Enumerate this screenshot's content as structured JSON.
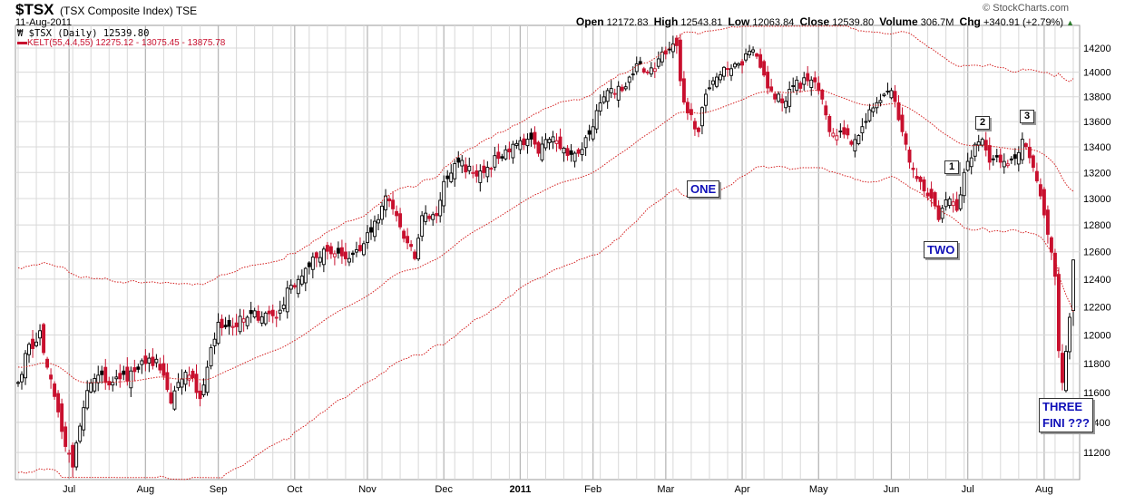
{
  "header": {
    "symbol": "$TSX",
    "name": "(TSX Composite Index) TSE",
    "date": "11-Aug-2011",
    "brand": "© StockCharts.com",
    "open_label": "Open",
    "open": "12172.83",
    "high_label": "High",
    "high": "12543.81",
    "low_label": "Low",
    "low": "12063.84",
    "close_label": "Close",
    "close": "12539.80",
    "volume_label": "Volume",
    "volume": "306.7M",
    "chg_label": "Chg",
    "chg": "+340.91 (+2.79%)",
    "chg_arrow": "▲"
  },
  "legend": {
    "price": "$TSX (Daily) 12539.80",
    "kelt": "KELT(55,4.4,55) 12275.12 - 13075.45 - 13875.78"
  },
  "annotations": {
    "one": "ONE",
    "two": "TWO",
    "n1": "1",
    "n2": "2",
    "n3": "3",
    "three_line1": "THREE",
    "three_line2": "FINI ???"
  },
  "chart_data": {
    "type": "candlestick",
    "title": "$TSX (TSX Composite Index) TSE",
    "scale": "log",
    "ylim": [
      11000,
      14350
    ],
    "yticks": [
      11200,
      11400,
      11600,
      11800,
      12000,
      12200,
      12400,
      12600,
      12800,
      13000,
      13200,
      13400,
      13600,
      13800,
      14000,
      14200
    ],
    "xticks": [
      {
        "day": 14,
        "label": "Jul"
      },
      {
        "day": 35,
        "label": "Aug"
      },
      {
        "day": 55,
        "label": "Sep"
      },
      {
        "day": 76,
        "label": "Oct"
      },
      {
        "day": 96,
        "label": "Nov"
      },
      {
        "day": 117,
        "label": "Dec"
      },
      {
        "day": 138,
        "label": "2011"
      },
      {
        "day": 158,
        "label": "Feb"
      },
      {
        "day": 178,
        "label": "Mar"
      },
      {
        "day": 199,
        "label": "Apr"
      },
      {
        "day": 220,
        "label": "May"
      },
      {
        "day": 240,
        "label": "Jun"
      },
      {
        "day": 261,
        "label": "Jul"
      },
      {
        "day": 282,
        "label": "Aug"
      }
    ],
    "total_days": 291,
    "close_keypoints": [
      [
        0,
        11670
      ],
      [
        2,
        11870
      ],
      [
        5,
        11950
      ],
      [
        6,
        12030
      ],
      [
        8,
        11775
      ],
      [
        11,
        11470
      ],
      [
        13,
        11240
      ],
      [
        15,
        11105
      ],
      [
        17,
        11375
      ],
      [
        19,
        11615
      ],
      [
        22,
        11720
      ],
      [
        24,
        11670
      ],
      [
        28,
        11695
      ],
      [
        32,
        11745
      ],
      [
        35,
        11800
      ],
      [
        38,
        11830
      ],
      [
        42,
        11530
      ],
      [
        44,
        11670
      ],
      [
        47,
        11720
      ],
      [
        50,
        11560
      ],
      [
        52,
        11775
      ],
      [
        55,
        12090
      ],
      [
        59,
        12060
      ],
      [
        63,
        12125
      ],
      [
        68,
        12155
      ],
      [
        71,
        12125
      ],
      [
        75,
        12355
      ],
      [
        80,
        12490
      ],
      [
        84,
        12620
      ],
      [
        88,
        12590
      ],
      [
        91,
        12550
      ],
      [
        95,
        12660
      ],
      [
        99,
        12840
      ],
      [
        101,
        13020
      ],
      [
        104,
        12870
      ],
      [
        106,
        12700
      ],
      [
        109,
        12550
      ],
      [
        111,
        12870
      ],
      [
        115,
        12870
      ],
      [
        117,
        13130
      ],
      [
        121,
        13280
      ],
      [
        125,
        13200
      ],
      [
        129,
        13240
      ],
      [
        132,
        13310
      ],
      [
        136,
        13420
      ],
      [
        140,
        13460
      ],
      [
        143,
        13350
      ],
      [
        146,
        13460
      ],
      [
        150,
        13390
      ],
      [
        153,
        13350
      ],
      [
        157,
        13500
      ],
      [
        160,
        13750
      ],
      [
        162,
        13850
      ],
      [
        166,
        13850
      ],
      [
        168,
        13960
      ],
      [
        171,
        14070
      ],
      [
        173,
        14000
      ],
      [
        176,
        14110
      ],
      [
        178,
        14150
      ],
      [
        181,
        14220
      ],
      [
        182,
        13930
      ],
      [
        184,
        13670
      ],
      [
        187,
        13520
      ],
      [
        189,
        13820
      ],
      [
        192,
        13960
      ],
      [
        194,
        14040
      ],
      [
        198,
        14070
      ],
      [
        202,
        14185
      ],
      [
        204,
        14040
      ],
      [
        207,
        13850
      ],
      [
        210,
        13750
      ],
      [
        213,
        13890
      ],
      [
        217,
        13930
      ],
      [
        220,
        13850
      ],
      [
        223,
        13520
      ],
      [
        227,
        13500
      ],
      [
        229,
        13420
      ],
      [
        232,
        13560
      ],
      [
        235,
        13710
      ],
      [
        238,
        13820
      ],
      [
        240,
        13850
      ],
      [
        243,
        13520
      ],
      [
        245,
        13280
      ],
      [
        248,
        13130
      ],
      [
        250,
        13020
      ],
      [
        253,
        12840
      ],
      [
        255,
        12990
      ],
      [
        258,
        12910
      ],
      [
        260,
        13200
      ],
      [
        263,
        13420
      ],
      [
        265,
        13460
      ],
      [
        267,
        13280
      ],
      [
        270,
        13280
      ],
      [
        274,
        13310
      ],
      [
        276,
        13460
      ],
      [
        279,
        13240
      ],
      [
        281,
        13020
      ],
      [
        283,
        12730
      ],
      [
        285,
        12420
      ],
      [
        286,
        11890
      ],
      [
        287,
        11670
      ],
      [
        289,
        12125
      ],
      [
        290,
        12540
      ]
    ],
    "series": [
      {
        "name": "$TSX (Daily)",
        "last": 12539.8
      },
      {
        "name": "KELT(55,4.4,55)",
        "lower": 12275.12,
        "middle": 13075.45,
        "upper": 13875.78
      }
    ],
    "colors": {
      "down": "#c8102e",
      "up": "#000000",
      "kelt": "#d42020",
      "grid": "#d8d8d8",
      "grid_month": "#b8b8b8"
    },
    "grid": true
  }
}
